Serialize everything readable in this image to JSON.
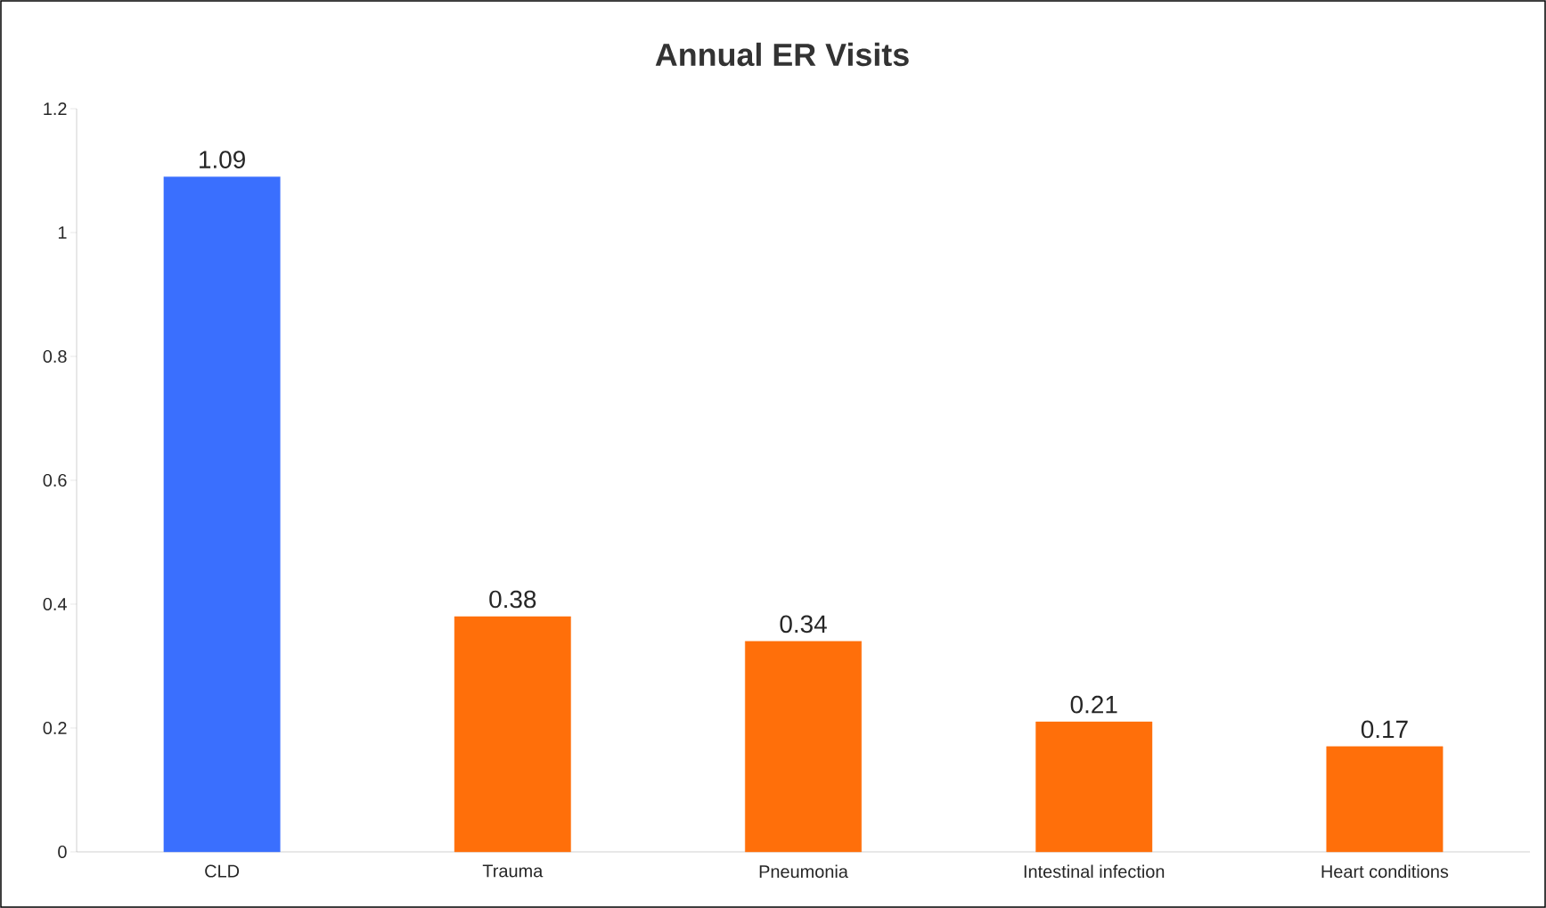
{
  "chart_data": {
    "type": "bar",
    "title": "Annual ER Visits",
    "categories": [
      "CLD",
      "Trauma",
      "Pneumonia",
      "Intestinal infection",
      "Heart conditions"
    ],
    "values": [
      1.09,
      0.38,
      0.34,
      0.21,
      0.17
    ],
    "colors": [
      "#3a6ffe",
      "#ff6f0a",
      "#ff6f0a",
      "#ff6f0a",
      "#ff6f0a"
    ],
    "ylim": [
      0,
      1.2
    ],
    "yticks": [
      0,
      0.2,
      0.4,
      0.6,
      0.8,
      1,
      1.2
    ],
    "data_labels": true,
    "grid": false
  }
}
